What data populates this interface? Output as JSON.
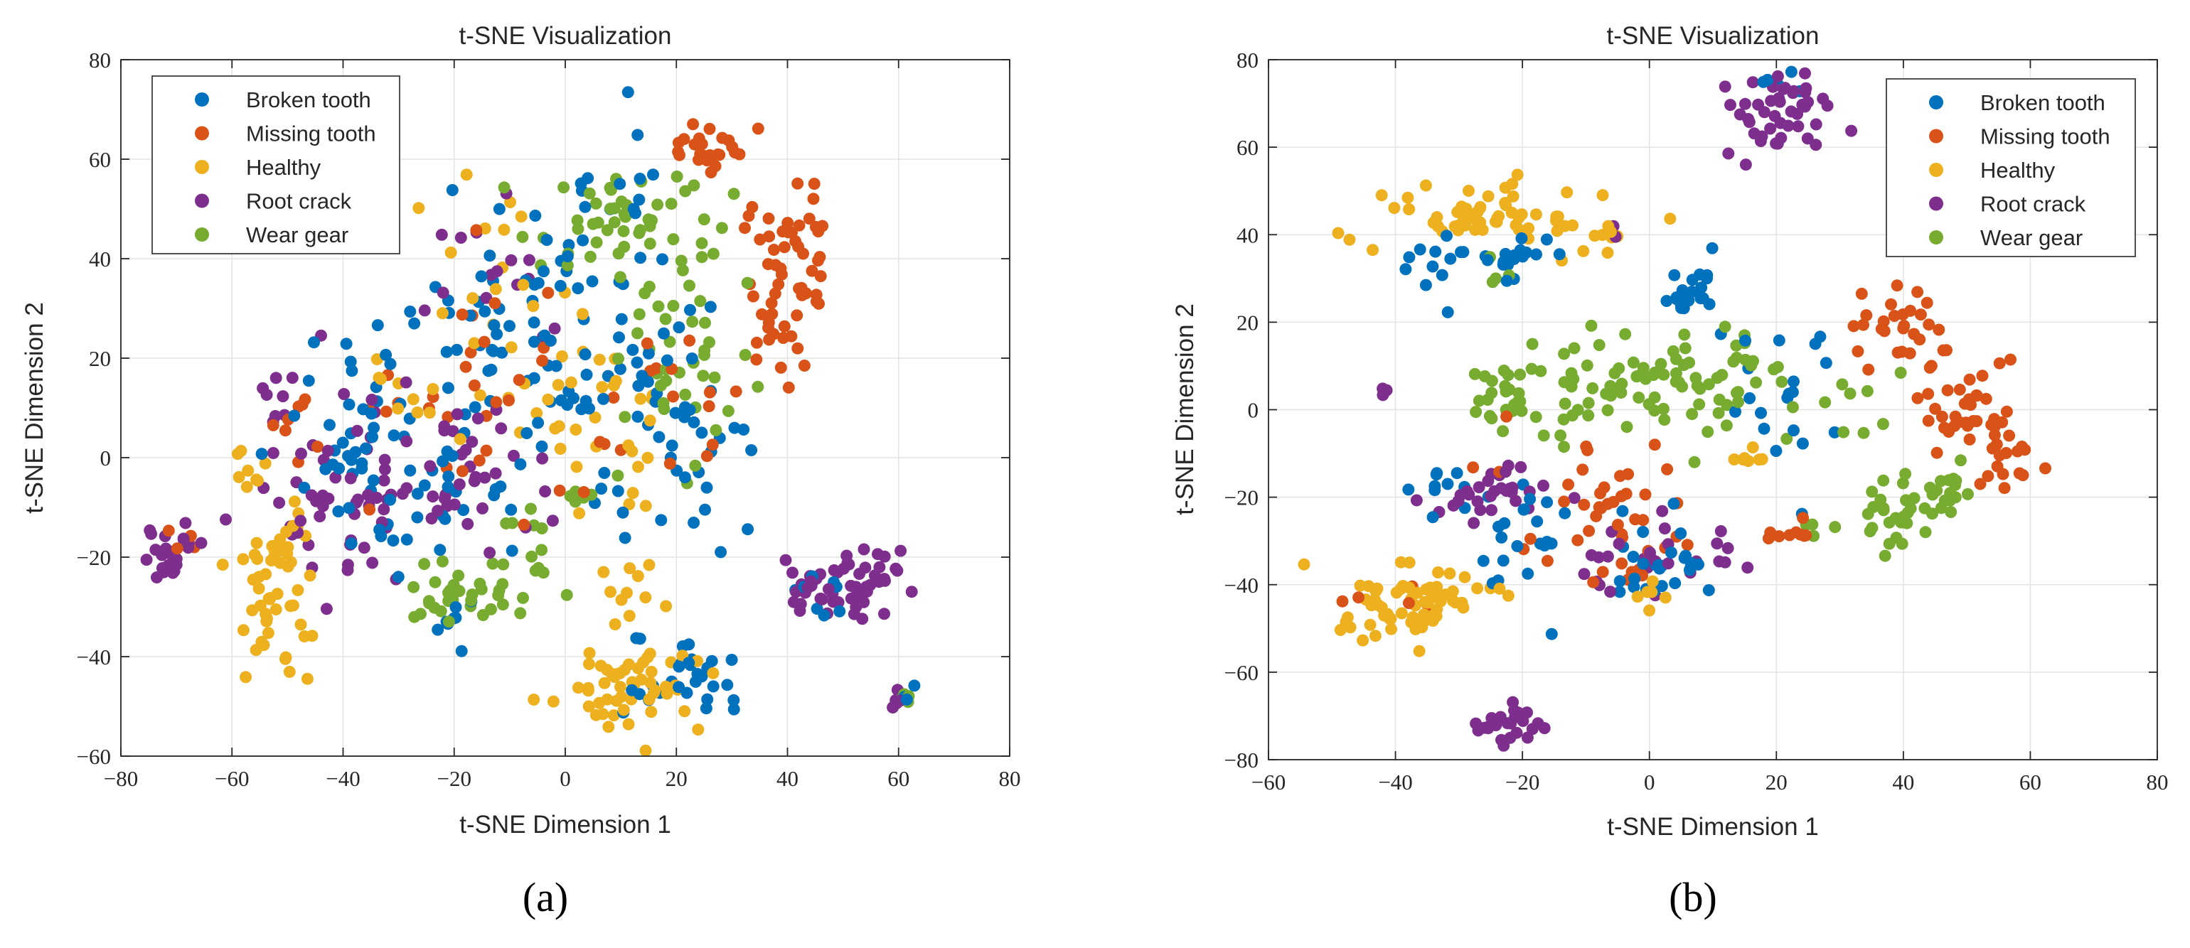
{
  "figure": {
    "panel_labels": [
      "(a)",
      "(b)"
    ]
  },
  "colors": {
    "broken_tooth": "#0072BD",
    "missing_tooth": "#D95319",
    "healthy": "#EDB120",
    "root_crack": "#7E2F8E",
    "wear_gear": "#77AC30"
  },
  "chart_data": [
    {
      "type": "scatter",
      "panel": "(a)",
      "title": "t-SNE Visualization",
      "xlabel": "t-SNE Dimension 1",
      "ylabel": "t-SNE Dimension 2",
      "xlim": [
        -80,
        80
      ],
      "ylim": [
        -60,
        80
      ],
      "xticks": [
        -80,
        -60,
        -40,
        -20,
        0,
        20,
        40,
        60,
        80
      ],
      "yticks": [
        -60,
        -40,
        -20,
        0,
        20,
        40,
        60,
        80
      ],
      "grid": true,
      "legend_position": "top-left",
      "series": [
        {
          "name": "Broken tooth",
          "color": "#0072BD",
          "clusters": [
            {
              "cx": -32,
              "cy": 0,
              "sx": 10,
              "sy": 11,
              "n": 70
            },
            {
              "cx": -12,
              "cy": 22,
              "sx": 8,
              "sy": 16,
              "n": 50
            },
            {
              "cx": 8,
              "cy": 30,
              "sx": 9,
              "sy": 17,
              "n": 50
            },
            {
              "cx": 20,
              "cy": 0,
              "sx": 6,
              "sy": 12,
              "n": 35
            },
            {
              "cx": 22,
              "cy": -45,
              "sx": 5,
              "sy": 4,
              "n": 30
            },
            {
              "cx": -20,
              "cy": -32,
              "sx": 3,
              "sy": 3,
              "n": 8
            },
            {
              "cx": 45,
              "cy": -27,
              "sx": 3,
              "sy": 5,
              "n": 8
            },
            {
              "cx": 62,
              "cy": -48,
              "sx": 1,
              "sy": 1,
              "n": 3
            }
          ]
        },
        {
          "name": "Missing tooth",
          "color": "#D95319",
          "clusters": [
            {
              "cx": 26,
              "cy": 61,
              "sx": 4,
              "sy": 3,
              "n": 25
            },
            {
              "cx": 40,
              "cy": 40,
              "sx": 4,
              "sy": 7,
              "n": 45
            },
            {
              "cx": 39,
              "cy": 25,
              "sx": 2,
              "sy": 5,
              "n": 15
            },
            {
              "cx": -14,
              "cy": 10,
              "sx": 10,
              "sy": 14,
              "n": 30
            },
            {
              "cx": 22,
              "cy": 10,
              "sx": 7,
              "sy": 10,
              "n": 15
            },
            {
              "cx": -45,
              "cy": 5,
              "sx": 6,
              "sy": 7,
              "n": 10
            },
            {
              "cx": -70,
              "cy": -18,
              "sx": 2,
              "sy": 2,
              "n": 4
            }
          ]
        },
        {
          "name": "Healthy",
          "color": "#EDB120",
          "clusters": [
            {
              "cx": -52,
              "cy": -28,
              "sx": 4,
              "sy": 9,
              "n": 55
            },
            {
              "cx": -58,
              "cy": -1,
              "sx": 2,
              "sy": 2,
              "n": 8
            },
            {
              "cx": 12,
              "cy": -46,
              "sx": 7,
              "sy": 5,
              "n": 55
            },
            {
              "cx": 12,
              "cy": -28,
              "sx": 3,
              "sy": 4,
              "n": 10
            },
            {
              "cx": -10,
              "cy": 28,
              "sx": 10,
              "sy": 16,
              "n": 30
            },
            {
              "cx": 8,
              "cy": 5,
              "sx": 8,
              "sy": 10,
              "n": 25
            },
            {
              "cx": -28,
              "cy": 12,
              "sx": 4,
              "sy": 4,
              "n": 8
            }
          ]
        },
        {
          "name": "Root crack",
          "color": "#7E2F8E",
          "clusters": [
            {
              "cx": -71,
              "cy": -19,
              "sx": 2.5,
              "sy": 3,
              "n": 25
            },
            {
              "cx": -42,
              "cy": -8,
              "sx": 6,
              "sy": 10,
              "n": 50
            },
            {
              "cx": -20,
              "cy": -2,
              "sx": 8,
              "sy": 9,
              "n": 40
            },
            {
              "cx": 50,
              "cy": -25,
              "sx": 5,
              "sy": 4,
              "n": 55
            },
            {
              "cx": 60,
              "cy": -48,
              "sx": 1,
              "sy": 1,
              "n": 6
            },
            {
              "cx": -12,
              "cy": 35,
              "sx": 6,
              "sy": 8,
              "n": 15
            },
            {
              "cx": -52,
              "cy": 12,
              "sx": 2,
              "sy": 2,
              "n": 6
            }
          ]
        },
        {
          "name": "Wear gear",
          "color": "#77AC30",
          "clusters": [
            {
              "cx": 10,
              "cy": 48,
              "sx": 7,
              "sy": 6,
              "n": 45
            },
            {
              "cx": 22,
              "cy": 22,
              "sx": 6,
              "sy": 12,
              "n": 45
            },
            {
              "cx": -20,
              "cy": -28,
              "sx": 5,
              "sy": 4,
              "n": 30
            },
            {
              "cx": -7,
              "cy": -20,
              "sx": 3,
              "sy": 5,
              "n": 15
            },
            {
              "cx": 61,
              "cy": -48,
              "sx": 1,
              "sy": 1,
              "n": 5
            },
            {
              "cx": 3,
              "cy": -8,
              "sx": 2,
              "sy": 2,
              "n": 5
            }
          ]
        }
      ]
    },
    {
      "type": "scatter",
      "panel": "(b)",
      "title": "t-SNE Visualization",
      "xlabel": "t-SNE Dimension 1",
      "ylabel": "t-SNE Dimension 2",
      "xlim": [
        -60,
        80
      ],
      "ylim": [
        -80,
        80
      ],
      "xticks": [
        -60,
        -40,
        -20,
        0,
        20,
        40,
        60,
        80
      ],
      "yticks": [
        -80,
        -60,
        -40,
        -20,
        0,
        20,
        40,
        60,
        80
      ],
      "grid": true,
      "legend_position": "top-right",
      "series": [
        {
          "name": "Broken tooth",
          "color": "#0072BD",
          "clusters": [
            {
              "cx": -28,
              "cy": 34,
              "sx": 6,
              "sy": 3,
              "n": 30
            },
            {
              "cx": 7,
              "cy": 28,
              "sx": 3,
              "sy": 4,
              "n": 20
            },
            {
              "cx": -22,
              "cy": -28,
              "sx": 6,
              "sy": 8,
              "n": 25
            },
            {
              "cx": 2,
              "cy": -35,
              "sx": 4,
              "sy": 6,
              "n": 25
            },
            {
              "cx": 20,
              "cy": 5,
              "sx": 5,
              "sy": 8,
              "n": 20
            },
            {
              "cx": 19,
              "cy": 75,
              "sx": 2,
              "sy": 2,
              "n": 6
            },
            {
              "cx": -33,
              "cy": -17,
              "sx": 3,
              "sy": 3,
              "n": 8
            }
          ]
        },
        {
          "name": "Missing tooth",
          "color": "#D95319",
          "clusters": [
            {
              "cx": 40,
              "cy": 18,
              "sx": 4,
              "sy": 5,
              "n": 30
            },
            {
              "cx": 50,
              "cy": 0,
              "sx": 4,
              "sy": 5,
              "n": 35
            },
            {
              "cx": 57,
              "cy": -12,
              "sx": 2,
              "sy": 3,
              "n": 15
            },
            {
              "cx": -5,
              "cy": -27,
              "sx": 8,
              "sy": 7,
              "n": 35
            },
            {
              "cx": 22,
              "cy": -28,
              "sx": 3,
              "sy": 1.5,
              "n": 10
            },
            {
              "cx": -40,
              "cy": -45,
              "sx": 3,
              "sy": 2,
              "n": 5
            },
            {
              "cx": -10,
              "cy": -10,
              "sx": 8,
              "sy": 6,
              "n": 10
            }
          ]
        },
        {
          "name": "Healthy",
          "color": "#EDB120",
          "clusters": [
            {
              "cx": -25,
              "cy": 45,
              "sx": 9,
              "sy": 4,
              "n": 60
            },
            {
              "cx": -40,
              "cy": -45,
              "sx": 5,
              "sy": 5,
              "n": 50
            },
            {
              "cx": -30,
              "cy": -40,
              "sx": 4,
              "sy": 4,
              "n": 15
            },
            {
              "cx": 17,
              "cy": -11,
              "sx": 2,
              "sy": 1.5,
              "n": 8
            },
            {
              "cx": 0,
              "cy": -43,
              "sx": 2,
              "sy": 2,
              "n": 6
            },
            {
              "cx": -8,
              "cy": 38,
              "sx": 2,
              "sy": 2,
              "n": 8
            }
          ]
        },
        {
          "name": "Root crack",
          "color": "#7E2F8E",
          "clusters": [
            {
              "cx": 20,
              "cy": 68,
              "sx": 4,
              "sy": 6,
              "n": 45
            },
            {
              "cx": -23,
              "cy": -72,
              "sx": 2,
              "sy": 2,
              "n": 25
            },
            {
              "cx": -24,
              "cy": -19,
              "sx": 5,
              "sy": 3,
              "n": 30
            },
            {
              "cx": 2,
              "cy": -33,
              "sx": 8,
              "sy": 5,
              "n": 30
            },
            {
              "cx": -42,
              "cy": 4,
              "sx": 1,
              "sy": 1,
              "n": 4
            },
            {
              "cx": -5,
              "cy": 40,
              "sx": 1,
              "sy": 1,
              "n": 3
            }
          ]
        },
        {
          "name": "Wear gear",
          "color": "#77AC30",
          "clusters": [
            {
              "cx": 2,
              "cy": 5,
              "sx": 16,
              "sy": 6,
              "n": 110
            },
            {
              "cx": 39,
              "cy": -25,
              "sx": 3,
              "sy": 4,
              "n": 30
            },
            {
              "cx": 47,
              "cy": -18,
              "sx": 2,
              "sy": 4,
              "n": 15
            },
            {
              "cx": -23,
              "cy": 2,
              "sx": 3,
              "sy": 3,
              "n": 15
            },
            {
              "cx": 26,
              "cy": -26,
              "sx": 2,
              "sy": 1.5,
              "n": 4
            },
            {
              "cx": -25,
              "cy": 30,
              "sx": 2,
              "sy": 2,
              "n": 4
            }
          ]
        }
      ]
    }
  ]
}
